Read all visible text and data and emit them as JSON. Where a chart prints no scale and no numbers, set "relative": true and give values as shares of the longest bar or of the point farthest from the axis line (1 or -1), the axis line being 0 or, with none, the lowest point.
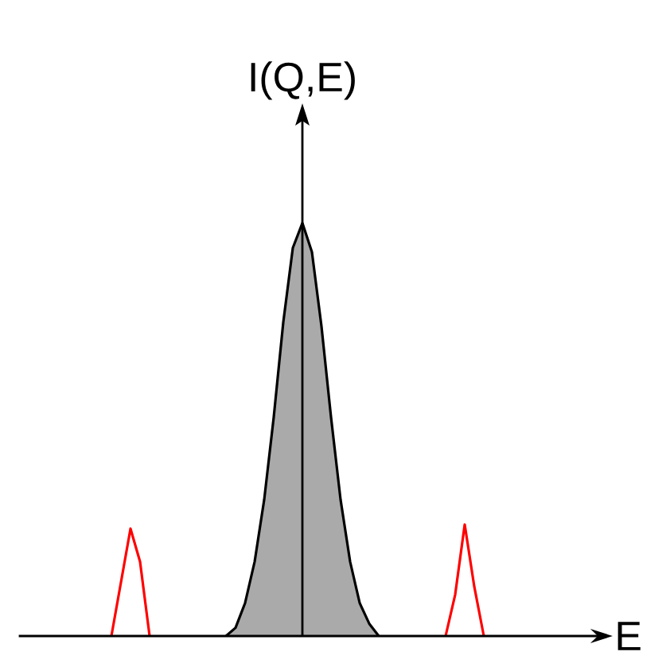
{
  "chart_data": {
    "type": "area",
    "relative": true,
    "xlabel": "E",
    "ylabel": "I(Q,E)",
    "categories": [
      null,
      null,
      null,
      null,
      null,
      null,
      null,
      null,
      null,
      null,
      null,
      null,
      null,
      null,
      null,
      null,
      null,
      null,
      null,
      null,
      null,
      null,
      null,
      null,
      null,
      null,
      null,
      null,
      null,
      null,
      null,
      null,
      null,
      null,
      null,
      null,
      null,
      null,
      null,
      null,
      null,
      null,
      null,
      null,
      null,
      null,
      null,
      null,
      null,
      null,
      null,
      null,
      null,
      null,
      null,
      null,
      null,
      null,
      null,
      null,
      null,
      null
    ],
    "series": [
      {
        "color": "#aaaaaa",
        "values": [
          null,
          null,
          null,
          null,
          null,
          null,
          null,
          null,
          null,
          null,
          null,
          null,
          null,
          null,
          null,
          null,
          null,
          null,
          null,
          null,
          null,
          0,
          0.02,
          0.08,
          0.18,
          0.33,
          0.53,
          0.76,
          0.94,
          1,
          0.93,
          0.75,
          0.53,
          0.33,
          0.18,
          0.08,
          0.03,
          0,
          null,
          null,
          null,
          null,
          null,
          null,
          null,
          null,
          null,
          null,
          null,
          null,
          null,
          null,
          null,
          null,
          null,
          null,
          null,
          null,
          null,
          null,
          null,
          null
        ]
      },
      {
        "type": "line",
        "color": "#ff0000",
        "values": [
          null,
          null,
          null,
          null,
          null,
          null,
          null,
          null,
          null,
          0,
          0.13,
          0.26,
          0.18,
          0,
          null,
          null,
          null,
          null,
          null,
          null,
          null,
          null,
          null,
          null,
          null,
          null,
          null,
          null,
          null,
          null,
          null,
          null,
          null,
          null,
          null,
          null,
          null,
          null,
          null,
          null,
          null,
          null,
          null,
          null,
          null,
          null,
          null,
          null,
          null,
          null,
          null,
          null,
          null,
          null,
          null,
          null,
          null,
          null,
          null,
          null,
          null,
          null
        ]
      },
      {
        "type": "line",
        "color": "#ff0000",
        "values": [
          null,
          null,
          null,
          null,
          null,
          null,
          null,
          null,
          null,
          null,
          null,
          null,
          null,
          null,
          null,
          null,
          null,
          null,
          null,
          null,
          null,
          null,
          null,
          null,
          null,
          null,
          null,
          null,
          null,
          null,
          null,
          null,
          null,
          null,
          null,
          null,
          null,
          null,
          null,
          null,
          null,
          null,
          null,
          null,
          0,
          0.1,
          0.27,
          0.12,
          0,
          null,
          null,
          null,
          null,
          null,
          null,
          null,
          null,
          null,
          null,
          null,
          null,
          null
        ]
      }
    ]
  }
}
